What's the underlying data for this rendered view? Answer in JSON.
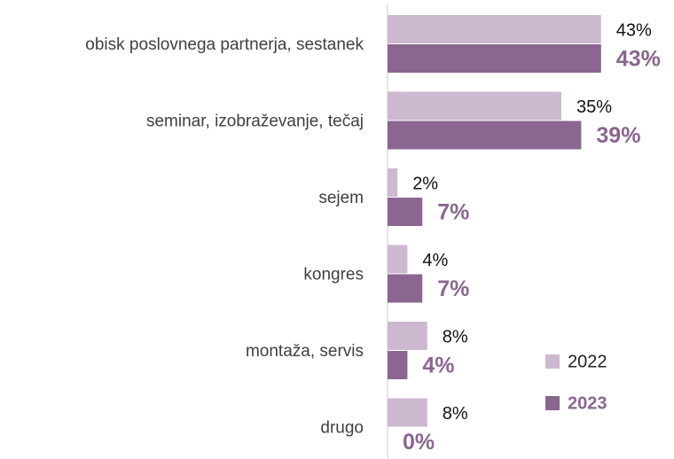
{
  "chart_data": {
    "type": "bar",
    "orientation": "horizontal",
    "categories": [
      "obisk poslovnega partnerja, sestanek",
      "seminar, izobraževanje, tečaj",
      "sejem",
      "kongres",
      "montaža, servis",
      "drugo"
    ],
    "series": [
      {
        "name": "2022",
        "color": "#cdb9cf",
        "values": [
          43,
          35,
          2,
          4,
          8,
          8
        ],
        "value_labels": [
          "43%",
          "35%",
          "2%",
          "4%",
          "8%",
          "8%"
        ]
      },
      {
        "name": "2023",
        "color": "#8a6690",
        "values": [
          43,
          39,
          7,
          7,
          4,
          0
        ],
        "value_labels": [
          "43%",
          "39%",
          "7%",
          "7%",
          "4%",
          "0%"
        ]
      }
    ],
    "xlim": [
      0,
      50
    ],
    "legend": "bottom-right"
  }
}
